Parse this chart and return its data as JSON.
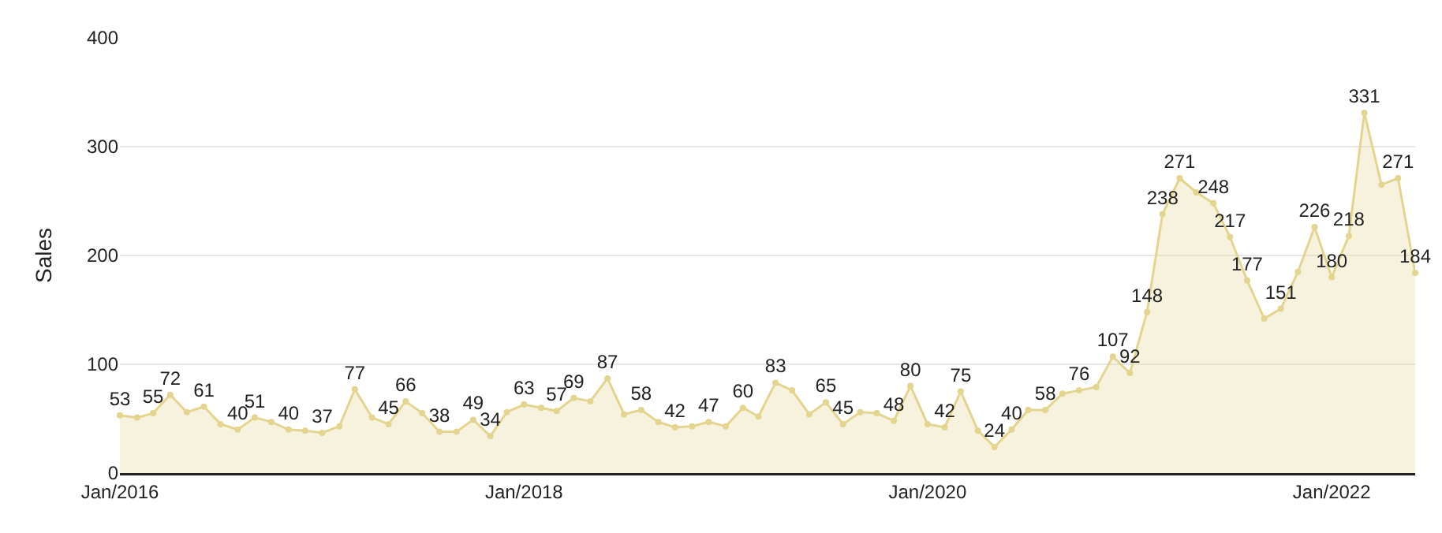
{
  "chart_data": {
    "type": "area",
    "ylabel": "Sales",
    "x": [
      "2016-01",
      "2016-02",
      "2016-03",
      "2016-04",
      "2016-05",
      "2016-06",
      "2016-07",
      "2016-08",
      "2016-09",
      "2016-10",
      "2016-11",
      "2016-12",
      "2017-01",
      "2017-02",
      "2017-03",
      "2017-04",
      "2017-05",
      "2017-06",
      "2017-07",
      "2017-08",
      "2017-09",
      "2017-10",
      "2017-11",
      "2017-12",
      "2018-01",
      "2018-02",
      "2018-03",
      "2018-04",
      "2018-05",
      "2018-06",
      "2018-07",
      "2018-08",
      "2018-09",
      "2018-10",
      "2018-11",
      "2018-12",
      "2019-01",
      "2019-02",
      "2019-03",
      "2019-04",
      "2019-05",
      "2019-06",
      "2019-07",
      "2019-08",
      "2019-09",
      "2019-10",
      "2019-11",
      "2019-12",
      "2020-01",
      "2020-02",
      "2020-03",
      "2020-04",
      "2020-05",
      "2020-06",
      "2020-07",
      "2020-08",
      "2020-09",
      "2020-10",
      "2020-11",
      "2020-12",
      "2021-01",
      "2021-02",
      "2021-03",
      "2021-04",
      "2021-05",
      "2021-06",
      "2021-07",
      "2021-08",
      "2021-09",
      "2021-10",
      "2021-11",
      "2021-12",
      "2022-01",
      "2022-02",
      "2022-03",
      "2022-04",
      "2022-05",
      "2022-06"
    ],
    "series": [
      {
        "color": "#e3d58f",
        "values": [
          53,
          51,
          55,
          72,
          56,
          61,
          45,
          40,
          51,
          47,
          40,
          39,
          37,
          43,
          77,
          51,
          45,
          66,
          55,
          38,
          38,
          49,
          34,
          56,
          63,
          60,
          57,
          69,
          66,
          87,
          54,
          58,
          47,
          42,
          43,
          47,
          43,
          60,
          52,
          83,
          76,
          54,
          65,
          45,
          56,
          55,
          48,
          80,
          45,
          42,
          75,
          39,
          24,
          40,
          58,
          58,
          73,
          76,
          79,
          107,
          92,
          148,
          238,
          271,
          258,
          248,
          217,
          177,
          142,
          151,
          185,
          226,
          180,
          218,
          331,
          265,
          271,
          184
        ],
        "value_labels": [
          "53",
          null,
          "55",
          "72",
          null,
          "61",
          null,
          "40",
          "51",
          null,
          "40",
          null,
          "37",
          null,
          "77",
          null,
          "45",
          "66",
          null,
          "38",
          null,
          "49",
          "34",
          null,
          "63",
          null,
          "57",
          "69",
          null,
          "87",
          null,
          "58",
          null,
          "42",
          null,
          "47",
          null,
          "60",
          null,
          "83",
          null,
          null,
          "65",
          "45",
          null,
          null,
          "48",
          "80",
          null,
          "42",
          "75",
          null,
          "24",
          "40",
          null,
          "58",
          null,
          "76",
          null,
          "107",
          "92",
          "148",
          "238",
          "271",
          null,
          "248",
          "217",
          "177",
          null,
          "151",
          null,
          "226",
          "180",
          "218",
          "331",
          null,
          "271",
          "184"
        ]
      }
    ],
    "xlim": [
      "2016-01",
      "2022-06"
    ],
    "xticks": [
      {
        "value": "2016-01",
        "label": "Jan/2016"
      },
      {
        "value": "2018-01",
        "label": "Jan/2018"
      },
      {
        "value": "2020-01",
        "label": "Jan/2020"
      },
      {
        "value": "2022-01",
        "label": "Jan/2022"
      }
    ],
    "ylim": [
      0,
      400
    ],
    "yticks": [
      0,
      100,
      200,
      300,
      400
    ],
    "grid": "y",
    "marker": "circle",
    "line_style": "solid"
  }
}
